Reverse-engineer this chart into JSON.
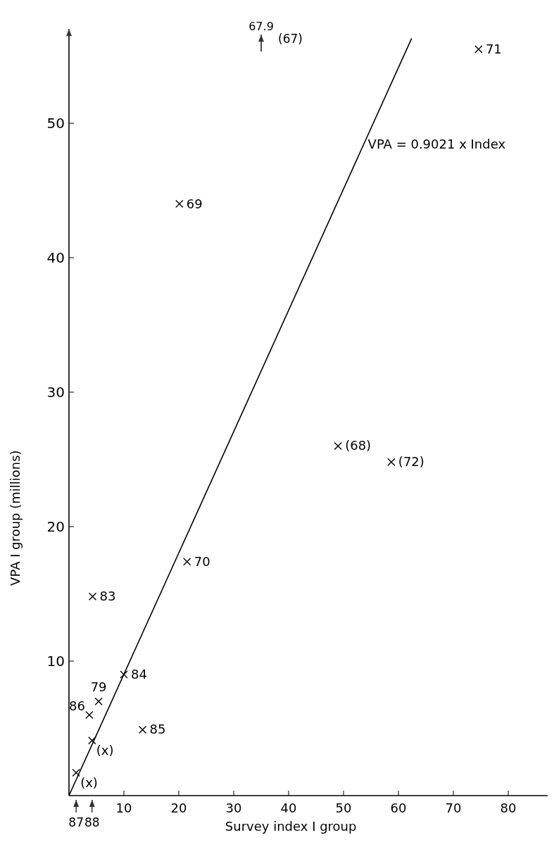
{
  "chart_data": {
    "type": "scatter",
    "xlabel": "Survey index I group",
    "ylabel": "VPA I group (millions)",
    "xlim": [
      0,
      88.5
    ],
    "ylim": [
      0,
      57
    ],
    "xticks": [
      10,
      20,
      30,
      40,
      50,
      60,
      70,
      80
    ],
    "yticks": [
      10,
      20,
      30,
      40,
      50
    ],
    "grid": false,
    "legend": false,
    "marker": "cross",
    "series": [
      {
        "name": "71",
        "color": "#000000",
        "x": [
          74.6
        ],
        "values": [
          55.5
        ]
      },
      {
        "name": "69",
        "color": "#000000",
        "x": [
          20.1
        ],
        "values": [
          44
        ]
      },
      {
        "name": "70",
        "color": "#000000",
        "x": [
          21.5
        ],
        "values": [
          17.4
        ]
      },
      {
        "name": "83",
        "color": "#000000",
        "x": [
          4.3
        ],
        "values": [
          14.8
        ]
      },
      {
        "name": "84",
        "color": "#000000",
        "x": [
          10
        ],
        "values": [
          9
        ]
      },
      {
        "name": "79",
        "color": "#000000",
        "x": [
          5.4
        ],
        "values": [
          7
        ]
      },
      {
        "name": "86",
        "color": "#000000",
        "x": [
          3.7
        ],
        "values": [
          6
        ]
      },
      {
        "name": "85",
        "color": "#000000",
        "x": [
          13.4
        ],
        "values": [
          4.9
        ]
      },
      {
        "name": "(68)",
        "color": "#000000",
        "x": [
          49
        ],
        "values": [
          26
        ]
      },
      {
        "name": "(72)",
        "color": "#000000",
        "x": [
          58.7
        ],
        "values": [
          24.8
        ]
      },
      {
        "name": "(x)",
        "color": "#000000",
        "x": [
          4.2
        ],
        "values": [
          4.1
        ]
      },
      {
        "name": "(x)",
        "color": "#000000",
        "x": [
          1.3
        ],
        "values": [
          1.7
        ]
      },
      {
        "type": "line",
        "name": "VPA = 0.9021 x Index",
        "color": "#000000",
        "marker": "none",
        "line_style": "solid",
        "x": [
          0,
          62.4
        ],
        "values": [
          0,
          56.3
        ]
      }
    ],
    "annotations": [
      "67.9",
      "(67)",
      "87",
      "88"
    ]
  }
}
